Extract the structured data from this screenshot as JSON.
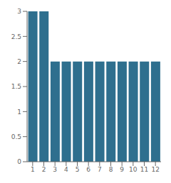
{
  "chart_data": {
    "type": "bar",
    "categories": [
      "1",
      "2",
      "3",
      "4",
      "5",
      "6",
      "7",
      "8",
      "9",
      "10",
      "11",
      "12"
    ],
    "values": [
      3,
      3,
      2,
      2,
      2,
      2,
      2,
      2,
      2,
      2,
      2,
      2
    ],
    "color": "#2e6f8e",
    "ylim": [
      0,
      3
    ],
    "yticks": [
      0,
      0.5,
      1,
      1.5,
      2,
      2.5,
      3
    ],
    "grid": false
  }
}
